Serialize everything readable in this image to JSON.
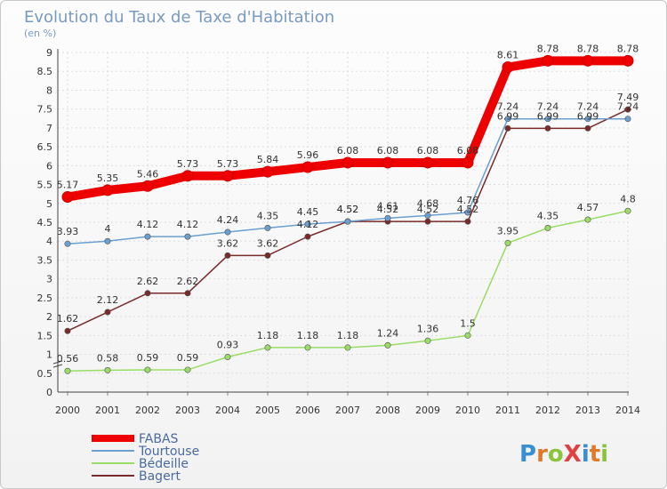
{
  "chart_data": {
    "type": "line",
    "title": "Evolution du Taux de Taxe d'Habitation",
    "subtitle": "(en %)",
    "x": [
      "2000",
      "2001",
      "2002",
      "2003",
      "2004",
      "2005",
      "2006",
      "2007",
      "2008",
      "2009",
      "2010",
      "2011",
      "2012",
      "2013",
      "2014"
    ],
    "ylim": [
      0,
      9
    ],
    "yticks": [
      "0",
      "0.5",
      "1",
      "1.5",
      "2",
      "2.5",
      "3",
      "3.5",
      "4",
      "4.5",
      "5",
      "5.5",
      "6",
      "6.5",
      "7",
      "7.5",
      "8",
      "8.5",
      "9"
    ],
    "grid": true,
    "legend_position": "bottom-left",
    "series": [
      {
        "name": "FABAS",
        "color": "#ee0000",
        "values": [
          5.17,
          5.35,
          5.46,
          5.73,
          5.73,
          5.84,
          5.96,
          6.08,
          6.08,
          6.08,
          6.08,
          8.61,
          8.78,
          8.78,
          8.78
        ],
        "labels": [
          "5.17",
          "5.35",
          "5.46",
          "5.73",
          "5.73",
          "5.84",
          "5.96",
          "6.08",
          "6.08",
          "6.08",
          "6.08",
          "8.61",
          "8.78",
          "8.78",
          "8.78"
        ]
      },
      {
        "name": "Tourtouse",
        "color": "#6a9fcf",
        "values": [
          3.93,
          4,
          4.12,
          4.12,
          4.24,
          4.35,
          4.45,
          4.52,
          4.61,
          4.68,
          4.76,
          7.24,
          7.24,
          7.24,
          7.24
        ],
        "labels": [
          "3.93",
          "4",
          "4.12",
          "4.12",
          "4.24",
          "4.35",
          "4.45",
          "4.52",
          "4.61",
          "4.68",
          "4.76",
          "7.24",
          "7.24",
          "7.24",
          "7.24"
        ]
      },
      {
        "name": "Bédeille",
        "color": "#99dd66",
        "values": [
          0.56,
          0.58,
          0.59,
          0.59,
          0.93,
          1.18,
          1.18,
          1.18,
          1.24,
          1.36,
          1.5,
          3.95,
          4.35,
          4.57,
          4.8
        ],
        "labels": [
          "0.56",
          "0.58",
          "0.59",
          "0.59",
          "0.93",
          "1.18",
          "1.18",
          "1.18",
          "1.24",
          "1.36",
          "1.5",
          "3.95",
          "4.35",
          "4.57",
          "4.8"
        ]
      },
      {
        "name": "Bagert",
        "color": "#7a2a2a",
        "values": [
          1.62,
          2.12,
          2.62,
          2.62,
          3.62,
          3.62,
          4.12,
          4.52,
          4.52,
          4.52,
          4.52,
          6.99,
          6.99,
          6.99,
          7.49
        ],
        "labels": [
          "1.62",
          "2.12",
          "2.62",
          "2.62",
          "3.62",
          "3.62",
          "4.12",
          "4.52",
          "4.52",
          "4.52",
          "4.52",
          "6.99",
          "6.99",
          "6.99",
          "7.49"
        ]
      }
    ]
  },
  "logo": {
    "text": "ProXiti"
  }
}
